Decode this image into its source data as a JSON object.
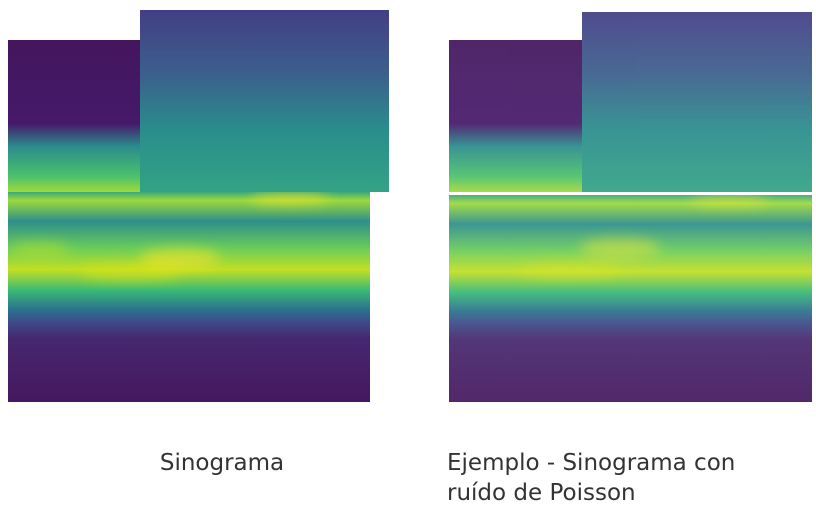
{
  "figures": [
    {
      "caption": [
        "Sinograma"
      ]
    },
    {
      "caption": [
        "Ejemplo - Sinograma con",
        "ruído de Poisson"
      ]
    }
  ]
}
